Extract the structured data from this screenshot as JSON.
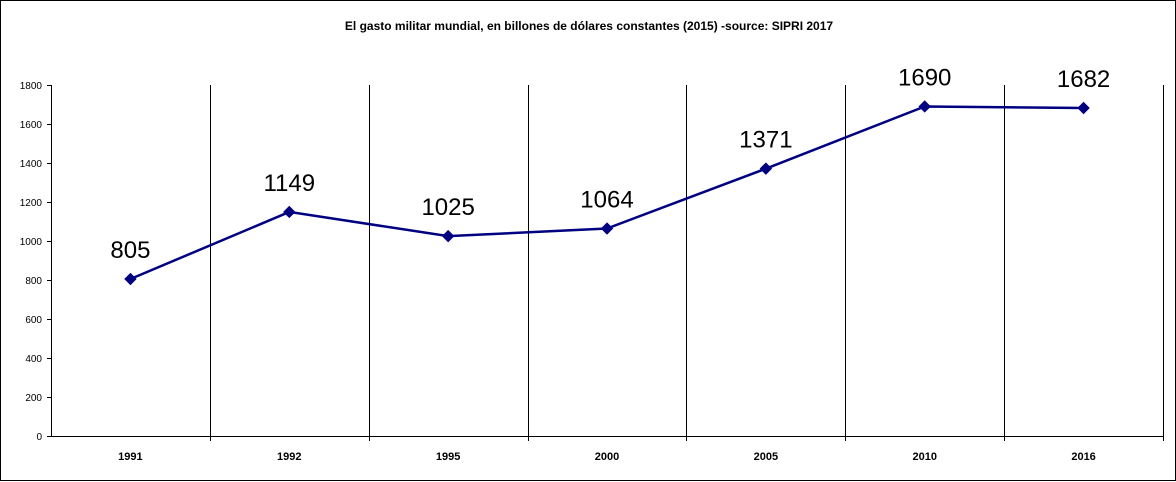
{
  "chart_data": {
    "type": "line",
    "title": "El gasto militar mundial, en billones de dólares constantes (2015) -source: SIPRI 2017",
    "xlabel": "",
    "ylabel": "",
    "categories": [
      "1991",
      "1992",
      "1995",
      "2000",
      "2005",
      "2010",
      "2016"
    ],
    "series": [
      {
        "values": [
          805,
          1149,
          1025,
          1064,
          1371,
          1690,
          1682
        ],
        "color": "#000080",
        "marker": "diamond"
      }
    ],
    "data_labels": [
      "805",
      "1149",
      "1025",
      "1064",
      "1371",
      "1690",
      "1682"
    ],
    "ylim": [
      0,
      1800
    ],
    "yticks": [
      "0",
      "200",
      "400",
      "600",
      "800",
      "1000",
      "1200",
      "1400",
      "1600",
      "1800"
    ],
    "grid": "vertical category separators",
    "legend": "none"
  }
}
